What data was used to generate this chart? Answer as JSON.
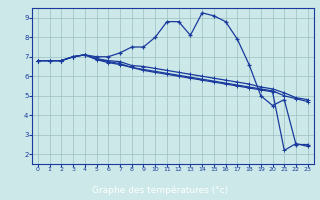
{
  "xlabel": "Graphe des températures (°c)",
  "bg_color": "#cce8e8",
  "plot_bg_color": "#cce8e8",
  "line_color": "#1a3a9e",
  "grid_color": "#9bbfbf",
  "xlabel_bg": "#2244aa",
  "xlabel_fg": "#ffffff",
  "xlim": [
    -0.5,
    23.5
  ],
  "ylim": [
    1.5,
    9.5
  ],
  "xticks": [
    0,
    1,
    2,
    3,
    4,
    5,
    6,
    7,
    8,
    9,
    10,
    11,
    12,
    13,
    14,
    15,
    16,
    17,
    18,
    19,
    20,
    21,
    22,
    23
  ],
  "yticks": [
    2,
    3,
    4,
    5,
    6,
    7,
    8,
    9
  ],
  "curve1_x": [
    0,
    1,
    2,
    3,
    4,
    5,
    6,
    7,
    8,
    9,
    10,
    11,
    12,
    13,
    14,
    15,
    16,
    17,
    18,
    19,
    20,
    21,
    22,
    23
  ],
  "curve1_y": [
    6.8,
    6.8,
    6.8,
    7.0,
    7.1,
    7.0,
    7.0,
    7.2,
    7.5,
    7.5,
    8.0,
    8.8,
    8.8,
    8.1,
    9.25,
    9.1,
    8.8,
    7.9,
    6.6,
    5.0,
    4.5,
    4.8,
    2.5,
    2.5
  ],
  "curve2_x": [
    0,
    1,
    2,
    3,
    4,
    5,
    6,
    7,
    8,
    9,
    10,
    11,
    12,
    13,
    14,
    15,
    16,
    17,
    18,
    19,
    20,
    21,
    22,
    23
  ],
  "curve2_y": [
    6.8,
    6.8,
    6.8,
    7.0,
    7.1,
    6.9,
    6.8,
    6.75,
    6.55,
    6.5,
    6.4,
    6.3,
    6.2,
    6.1,
    6.0,
    5.9,
    5.8,
    5.7,
    5.6,
    5.45,
    5.35,
    5.15,
    4.9,
    4.8
  ],
  "curve3_x": [
    0,
    1,
    2,
    3,
    4,
    5,
    6,
    7,
    8,
    9,
    10,
    11,
    12,
    13,
    14,
    15,
    16,
    17,
    18,
    19,
    20,
    21,
    22,
    23
  ],
  "curve3_y": [
    6.8,
    6.8,
    6.8,
    7.0,
    7.1,
    6.9,
    6.75,
    6.65,
    6.45,
    6.35,
    6.25,
    6.15,
    6.05,
    5.95,
    5.85,
    5.75,
    5.65,
    5.55,
    5.45,
    5.35,
    5.25,
    5.0,
    4.85,
    4.7
  ],
  "curve4_x": [
    0,
    1,
    2,
    3,
    4,
    5,
    6,
    7,
    8,
    9,
    10,
    11,
    12,
    13,
    14,
    15,
    16,
    17,
    18,
    19,
    20,
    21,
    22,
    23
  ],
  "curve4_y": [
    6.8,
    6.8,
    6.8,
    7.0,
    7.1,
    6.85,
    6.7,
    6.6,
    6.45,
    6.3,
    6.2,
    6.1,
    6.0,
    5.9,
    5.8,
    5.7,
    5.6,
    5.5,
    5.4,
    5.3,
    5.2,
    2.2,
    2.55,
    2.4
  ]
}
